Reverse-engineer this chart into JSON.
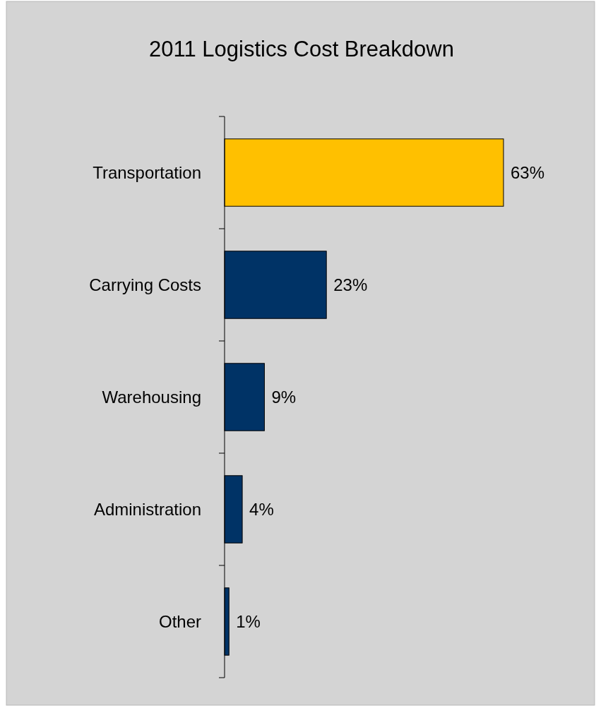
{
  "chart_data": {
    "type": "bar",
    "orientation": "horizontal",
    "title": "2011 Logistics Cost Breakdown",
    "categories": [
      "Transportation",
      "Carrying Costs",
      "Warehousing",
      "Administration",
      "Other"
    ],
    "values": [
      63,
      23,
      9,
      4,
      1
    ],
    "colors": [
      "#ffc000",
      "#003366",
      "#003366",
      "#003366",
      "#003366"
    ],
    "data_labels": true,
    "value_labels": [
      "63%",
      "23%",
      "9%",
      "4%",
      "1%"
    ],
    "tick_labels": "y"
  }
}
